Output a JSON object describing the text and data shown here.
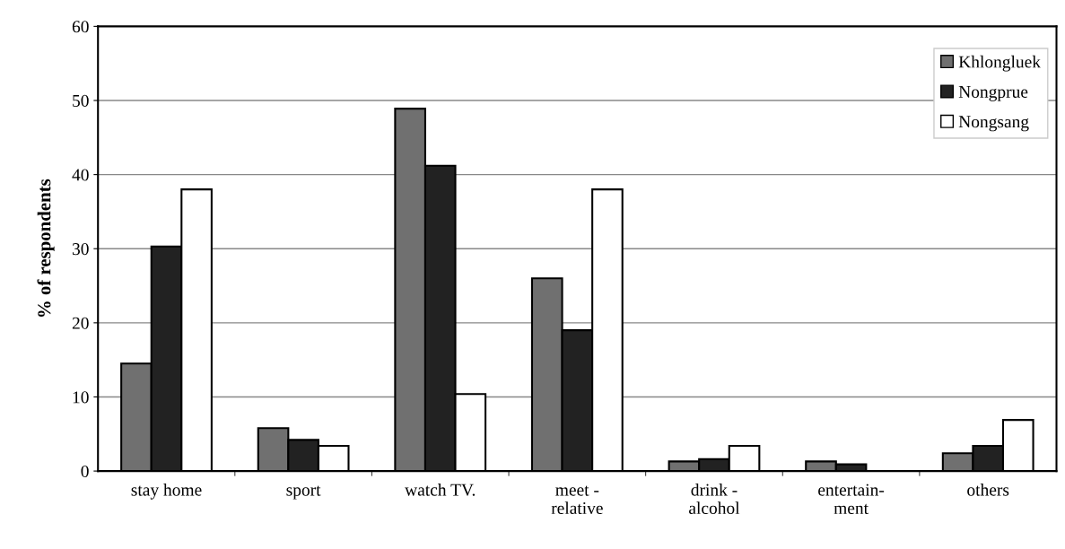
{
  "chart_data": {
    "type": "bar",
    "ylabel": "% of respondents",
    "categories": [
      "stay home",
      "sport",
      "watch TV.",
      "meet -\nrelative",
      "drink -\nalcohol",
      "entertain-\nment",
      "others"
    ],
    "series": [
      {
        "name": "Khlongluek",
        "color": "#707070",
        "values": [
          14.5,
          5.8,
          48.9,
          26.0,
          1.3,
          1.3,
          2.4
        ]
      },
      {
        "name": "Nongprue",
        "color": "#222222",
        "values": [
          30.3,
          4.2,
          41.2,
          19.0,
          1.6,
          0.9,
          3.4
        ]
      },
      {
        "name": "Nongsang",
        "color": "#ffffff",
        "values": [
          38.0,
          3.4,
          10.4,
          38.0,
          3.4,
          null,
          6.9
        ]
      }
    ],
    "ylim": [
      0,
      60
    ],
    "yticks": [
      0,
      10,
      20,
      30,
      40,
      50,
      60
    ],
    "grid": "y",
    "legend": "top right"
  }
}
